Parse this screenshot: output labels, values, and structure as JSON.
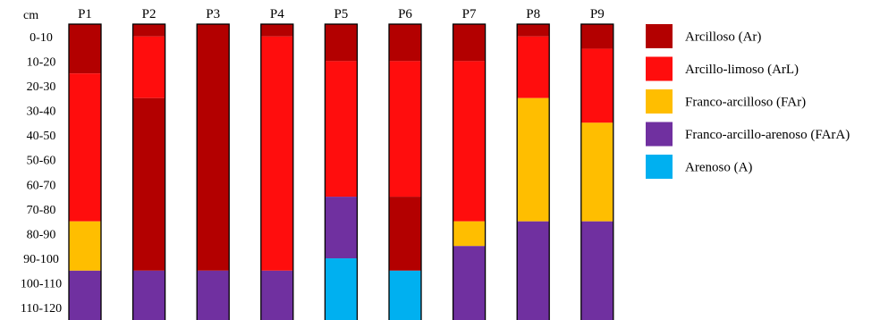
{
  "chart_data": {
    "type": "bar",
    "orientation": "vertical-stacked",
    "ylabel": "cm",
    "y_categories": [
      "0-10",
      "10-20",
      "20-30",
      "30-40",
      "40-50",
      "50-60",
      "60-70",
      "70-80",
      "80-90",
      "90-100",
      "100-110",
      "110-120"
    ],
    "ylim": [
      0,
      120
    ],
    "y_inverted": true,
    "columns": [
      {
        "label": "P1",
        "layers": [
          {
            "class": "Ar",
            "from": 0,
            "to": 20
          },
          {
            "class": "ArL",
            "from": 20,
            "to": 80
          },
          {
            "class": "FAr",
            "from": 80,
            "to": 100
          },
          {
            "class": "FArA",
            "from": 100,
            "to": 120
          }
        ]
      },
      {
        "label": "P2",
        "layers": [
          {
            "class": "Ar",
            "from": 0,
            "to": 5
          },
          {
            "class": "ArL",
            "from": 5,
            "to": 30
          },
          {
            "class": "Ar",
            "from": 30,
            "to": 100
          },
          {
            "class": "FArA",
            "from": 100,
            "to": 120
          }
        ]
      },
      {
        "label": "P3",
        "layers": [
          {
            "class": "Ar",
            "from": 0,
            "to": 100
          },
          {
            "class": "FArA",
            "from": 100,
            "to": 120
          }
        ]
      },
      {
        "label": "P4",
        "layers": [
          {
            "class": "Ar",
            "from": 0,
            "to": 5
          },
          {
            "class": "ArL",
            "from": 5,
            "to": 100
          },
          {
            "class": "FArA",
            "from": 100,
            "to": 120
          }
        ]
      },
      {
        "label": "P5",
        "layers": [
          {
            "class": "Ar",
            "from": 0,
            "to": 15
          },
          {
            "class": "ArL",
            "from": 15,
            "to": 70
          },
          {
            "class": "FArA",
            "from": 70,
            "to": 95
          },
          {
            "class": "A",
            "from": 95,
            "to": 120
          }
        ]
      },
      {
        "label": "P6",
        "layers": [
          {
            "class": "Ar",
            "from": 0,
            "to": 15
          },
          {
            "class": "ArL",
            "from": 15,
            "to": 70
          },
          {
            "class": "Ar",
            "from": 70,
            "to": 100
          },
          {
            "class": "A",
            "from": 100,
            "to": 120
          }
        ]
      },
      {
        "label": "P7",
        "layers": [
          {
            "class": "Ar",
            "from": 0,
            "to": 15
          },
          {
            "class": "ArL",
            "from": 15,
            "to": 80
          },
          {
            "class": "FAr",
            "from": 80,
            "to": 90
          },
          {
            "class": "FArA",
            "from": 90,
            "to": 120
          }
        ]
      },
      {
        "label": "P8",
        "layers": [
          {
            "class": "Ar",
            "from": 0,
            "to": 5
          },
          {
            "class": "ArL",
            "from": 5,
            "to": 30
          },
          {
            "class": "FAr",
            "from": 30,
            "to": 80
          },
          {
            "class": "FArA",
            "from": 80,
            "to": 120
          }
        ]
      },
      {
        "label": "P9",
        "layers": [
          {
            "class": "Ar",
            "from": 0,
            "to": 10
          },
          {
            "class": "ArL",
            "from": 10,
            "to": 40
          },
          {
            "class": "FAr",
            "from": 40,
            "to": 80
          },
          {
            "class": "FArA",
            "from": 80,
            "to": 120
          }
        ]
      }
    ],
    "legend": {
      "placement": "right",
      "items": [
        {
          "key": "Ar",
          "label": "Arcilloso (Ar)",
          "color": "#b30000"
        },
        {
          "key": "ArL",
          "label": "Arcillo-limoso (ArL)",
          "color": "#ff0d0d"
        },
        {
          "key": "FAr",
          "label": "Franco-arcilloso (FAr)",
          "color": "#ffbe00"
        },
        {
          "key": "FArA",
          "label": "Franco-arcillo-arenoso (FArA)",
          "color": "#7030a0"
        },
        {
          "key": "A",
          "label": "Arenoso (A)",
          "color": "#00b0f0"
        }
      ]
    },
    "grid": false
  }
}
